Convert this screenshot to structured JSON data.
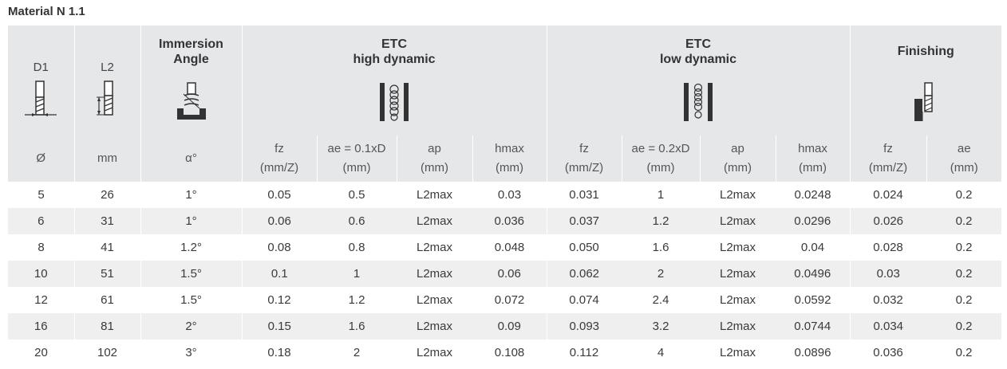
{
  "title": "Material N 1.1",
  "header": {
    "d1": {
      "label": "D1",
      "unit": "Ø"
    },
    "l2": {
      "label": "L2",
      "unit": "mm"
    },
    "immersion": {
      "label_line1": "Immersion",
      "label_line2": "Angle",
      "unit": "α°"
    },
    "high": {
      "line1": "ETC",
      "line2": "high dynamic",
      "cols": [
        {
          "name": "fz",
          "unit": "(mm/Z)"
        },
        {
          "name": "ae = 0.1xD",
          "unit": "(mm)"
        },
        {
          "name": "ap",
          "unit": "(mm)"
        },
        {
          "name": "hmax",
          "unit": "(mm)"
        }
      ]
    },
    "low": {
      "line1": "ETC",
      "line2": "low dynamic",
      "cols": [
        {
          "name": "fz",
          "unit": "(mm/Z)"
        },
        {
          "name": "ae = 0.2xD",
          "unit": "(mm)"
        },
        {
          "name": "ap",
          "unit": "(mm)"
        },
        {
          "name": "hmax",
          "unit": "(mm)"
        }
      ]
    },
    "finishing": {
      "label": "Finishing",
      "cols": [
        {
          "name": "fz",
          "unit": "(mm/Z)"
        },
        {
          "name": "ae",
          "unit": "(mm)"
        }
      ]
    }
  },
  "rows": [
    [
      "5",
      "26",
      "1°",
      "0.05",
      "0.5",
      "L2max",
      "0.03",
      "0.031",
      "1",
      "L2max",
      "0.0248",
      "0.024",
      "0.2"
    ],
    [
      "6",
      "31",
      "1°",
      "0.06",
      "0.6",
      "L2max",
      "0.036",
      "0.037",
      "1.2",
      "L2max",
      "0.0296",
      "0.026",
      "0.2"
    ],
    [
      "8",
      "41",
      "1.2°",
      "0.08",
      "0.8",
      "L2max",
      "0.048",
      "0.050",
      "1.6",
      "L2max",
      "0.04",
      "0.028",
      "0.2"
    ],
    [
      "10",
      "51",
      "1.5°",
      "0.1",
      "1",
      "L2max",
      "0.06",
      "0.062",
      "2",
      "L2max",
      "0.0496",
      "0.03",
      "0.2"
    ],
    [
      "12",
      "61",
      "1.5°",
      "0.12",
      "1.2",
      "L2max",
      "0.072",
      "0.074",
      "2.4",
      "L2max",
      "0.0592",
      "0.032",
      "0.2"
    ],
    [
      "16",
      "81",
      "2°",
      "0.15",
      "1.6",
      "L2max",
      "0.09",
      "0.093",
      "3.2",
      "L2max",
      "0.0744",
      "0.034",
      "0.2"
    ],
    [
      "20",
      "102",
      "3°",
      "0.18",
      "2",
      "L2max",
      "0.108",
      "0.112",
      "4",
      "L2max",
      "0.0896",
      "0.036",
      "0.2"
    ]
  ]
}
